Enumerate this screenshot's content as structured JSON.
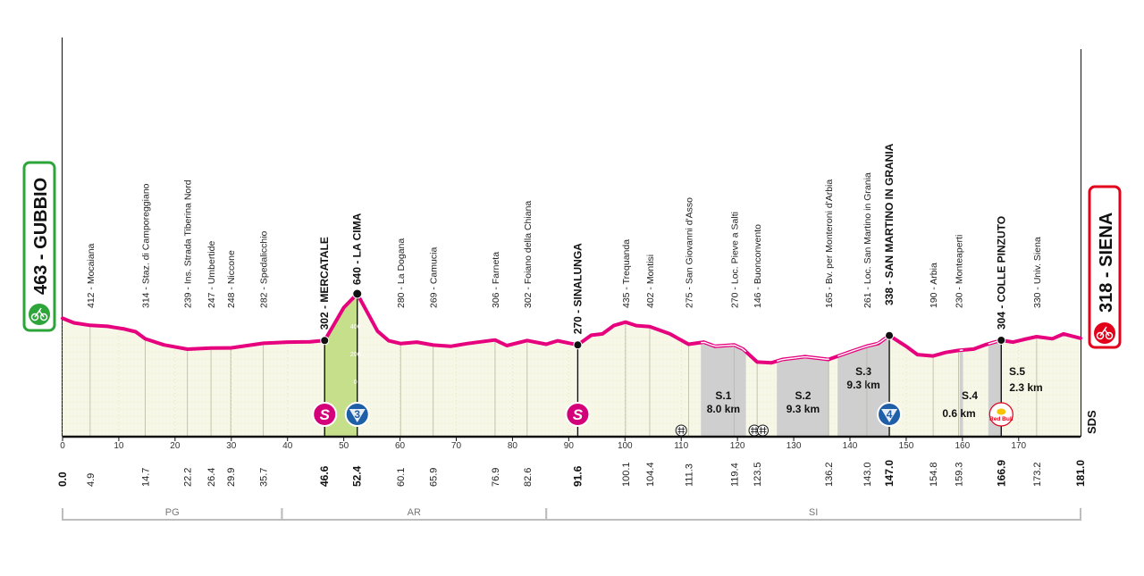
{
  "chart_data": {
    "type": "area",
    "xlim": [
      0,
      181
    ],
    "x_ticks": [
      0,
      10,
      20,
      30,
      40,
      50,
      60,
      70,
      80,
      90,
      100,
      110,
      120,
      130,
      140,
      150,
      160,
      170
    ],
    "y_scale_ticks": [
      "400",
      "200",
      "0"
    ],
    "start": {
      "name": "GUBBIO",
      "km": "0.0",
      "alt": "463",
      "label": "463 - GUBBIO",
      "color": "#2ea53a"
    },
    "finish": {
      "name": "SIENA",
      "km": "181.0",
      "alt": "318",
      "label": "318 - SIENA",
      "color": "#e2001a"
    },
    "profile": [
      [
        0,
        463
      ],
      [
        2,
        430
      ],
      [
        4.9,
        412
      ],
      [
        8,
        405
      ],
      [
        11,
        385
      ],
      [
        13,
        365
      ],
      [
        14.7,
        314
      ],
      [
        18,
        270
      ],
      [
        22.2,
        239
      ],
      [
        26.4,
        247
      ],
      [
        29.9,
        248
      ],
      [
        35.7,
        282
      ],
      [
        40,
        290
      ],
      [
        44,
        293
      ],
      [
        46.6,
        302
      ],
      [
        48,
        400
      ],
      [
        50,
        540
      ],
      [
        52.4,
        640
      ],
      [
        54,
        520
      ],
      [
        56,
        370
      ],
      [
        58,
        300
      ],
      [
        60.1,
        280
      ],
      [
        63,
        290
      ],
      [
        65.9,
        269
      ],
      [
        69,
        260
      ],
      [
        72,
        280
      ],
      [
        76.9,
        306
      ],
      [
        79,
        265
      ],
      [
        82.6,
        302
      ],
      [
        86,
        275
      ],
      [
        88,
        300
      ],
      [
        91.6,
        270
      ],
      [
        94,
        340
      ],
      [
        96,
        350
      ],
      [
        98,
        410
      ],
      [
        100.1,
        435
      ],
      [
        102,
        410
      ],
      [
        104.4,
        402
      ],
      [
        108,
        350
      ],
      [
        111.3,
        275
      ],
      [
        114,
        290
      ],
      [
        116,
        260
      ],
      [
        119.4,
        270
      ],
      [
        121,
        240
      ],
      [
        123.5,
        146
      ],
      [
        126,
        140
      ],
      [
        128,
        165
      ],
      [
        132,
        185
      ],
      [
        136.2,
        165
      ],
      [
        140,
        220
      ],
      [
        143.0,
        261
      ],
      [
        145,
        280
      ],
      [
        147.0,
        338
      ],
      [
        150,
        260
      ],
      [
        152,
        200
      ],
      [
        154.8,
        190
      ],
      [
        157,
        215
      ],
      [
        159.3,
        230
      ],
      [
        162,
        240
      ],
      [
        164,
        270
      ],
      [
        166.9,
        304
      ],
      [
        169,
        290
      ],
      [
        171,
        310
      ],
      [
        173.2,
        330
      ],
      [
        176,
        315
      ],
      [
        178,
        350
      ],
      [
        181.0,
        318
      ]
    ],
    "labels": [
      {
        "km": 4.9,
        "alt": 412,
        "text": "412 - Mocaiana",
        "km_text": "4.9"
      },
      {
        "km": 14.7,
        "alt": 314,
        "text": "314 - Staz. di Camporeggiano",
        "km_text": "14.7"
      },
      {
        "km": 22.2,
        "alt": 239,
        "text": "239 - Ins. Strada Tiberina Nord",
        "km_text": "22.2"
      },
      {
        "km": 26.4,
        "alt": 247,
        "text": "247 - Umbertide",
        "km_text": "26.4"
      },
      {
        "km": 29.9,
        "alt": 248,
        "text": "248 - Niccone",
        "km_text": "29.9"
      },
      {
        "km": 35.7,
        "alt": 282,
        "text": "282 - Spedalicchio",
        "km_text": "35.7"
      },
      {
        "km": 46.6,
        "alt": 302,
        "text": "302 - MERCATALE",
        "km_text": "46.6",
        "bold": true
      },
      {
        "km": 52.4,
        "alt": 640,
        "text": "640 - LA CIMA",
        "km_text": "52.4",
        "bold": true
      },
      {
        "km": 60.1,
        "alt": 280,
        "text": "280 - La Dogana",
        "km_text": "60.1"
      },
      {
        "km": 65.9,
        "alt": 269,
        "text": "269 - Camucia",
        "km_text": "65.9"
      },
      {
        "km": 76.9,
        "alt": 306,
        "text": "306 - Farneta",
        "km_text": "76.9"
      },
      {
        "km": 82.6,
        "alt": 302,
        "text": "302 - Foiano della Chiana",
        "km_text": "82.6"
      },
      {
        "km": 91.6,
        "alt": 270,
        "text": "270 - SINALUNGA",
        "km_text": "91.6",
        "bold": true
      },
      {
        "km": 100.1,
        "alt": 435,
        "text": "435 - Trequanda",
        "km_text": "100.1"
      },
      {
        "km": 104.4,
        "alt": 402,
        "text": "402 - Montisi",
        "km_text": "104.4"
      },
      {
        "km": 111.3,
        "alt": 275,
        "text": "275 - San Giovanni d'Asso",
        "km_text": "111.3"
      },
      {
        "km": 119.4,
        "alt": 270,
        "text": "270 - Loc. Pieve a Salti",
        "km_text": "119.4"
      },
      {
        "km": 123.5,
        "alt": 146,
        "text": "146 - Buonconvento",
        "km_text": "123.5"
      },
      {
        "km": 136.2,
        "alt": 165,
        "text": "165 - Bv. per Monteroni d'Arbia",
        "km_text": "136.2"
      },
      {
        "km": 143.0,
        "alt": 261,
        "text": "261 - Loc. San Martino in Grania",
        "km_text": "143.0"
      },
      {
        "km": 147.0,
        "alt": 338,
        "text": "338 - SAN MARTINO IN GRANIA",
        "km_text": "147.0",
        "bold": true
      },
      {
        "km": 154.8,
        "alt": 190,
        "text": "190 - Arbia",
        "km_text": "154.8"
      },
      {
        "km": 159.3,
        "alt": 230,
        "text": "230 - Monteaperti",
        "km_text": "159.3"
      },
      {
        "km": 166.9,
        "alt": 304,
        "text": "304 - COLLE PINZUTO",
        "km_text": "166.9",
        "bold": true
      },
      {
        "km": 173.2,
        "alt": 330,
        "text": "330 - Univ. Siena",
        "km_text": "173.2"
      }
    ],
    "sectors": [
      {
        "from": 113.5,
        "to": 121.5,
        "name": "S.1",
        "len": "8.0 km"
      },
      {
        "from": 127,
        "to": 136.3,
        "name": "S.2",
        "len": "9.3 km"
      },
      {
        "from": 137.8,
        "to": 147.0,
        "name": "S.3",
        "len": "9.3 km"
      },
      {
        "from": 159.5,
        "to": 160.1,
        "name": "S.4",
        "len": "0.6 km"
      },
      {
        "from": 164.6,
        "to": 166.9,
        "name": "S.5",
        "len": "2.3 km"
      }
    ],
    "climb_shading": {
      "from": 46.6,
      "to": 52.4,
      "color": "#c6df8a"
    },
    "badges": [
      {
        "km": 46.6,
        "text": "S",
        "kind": "sprint",
        "color": "#d4007a"
      },
      {
        "km": 52.4,
        "text": "3",
        "kind": "gpm",
        "color": "#1f5fa8"
      },
      {
        "km": 91.6,
        "text": "S",
        "kind": "sprint",
        "color": "#d4007a"
      },
      {
        "km": 147.0,
        "text": "4",
        "kind": "gpm",
        "color": "#1f5fa8"
      },
      {
        "km": 166.9,
        "text": "Red Bull",
        "kind": "redbull",
        "color": "#e2001a"
      }
    ],
    "rail_crossings": [
      110,
      123,
      124.5
    ],
    "regions": [
      {
        "from": 0,
        "to": 39,
        "name": "PG"
      },
      {
        "from": 39,
        "to": 86,
        "name": "AR"
      },
      {
        "from": 86,
        "to": 181,
        "name": "SI"
      }
    ],
    "logo_text": "SDS",
    "colors": {
      "line": "#e6007e",
      "fill": "#f7f7e8",
      "ground": "#111111",
      "gravel": "#cfcfcf"
    }
  }
}
